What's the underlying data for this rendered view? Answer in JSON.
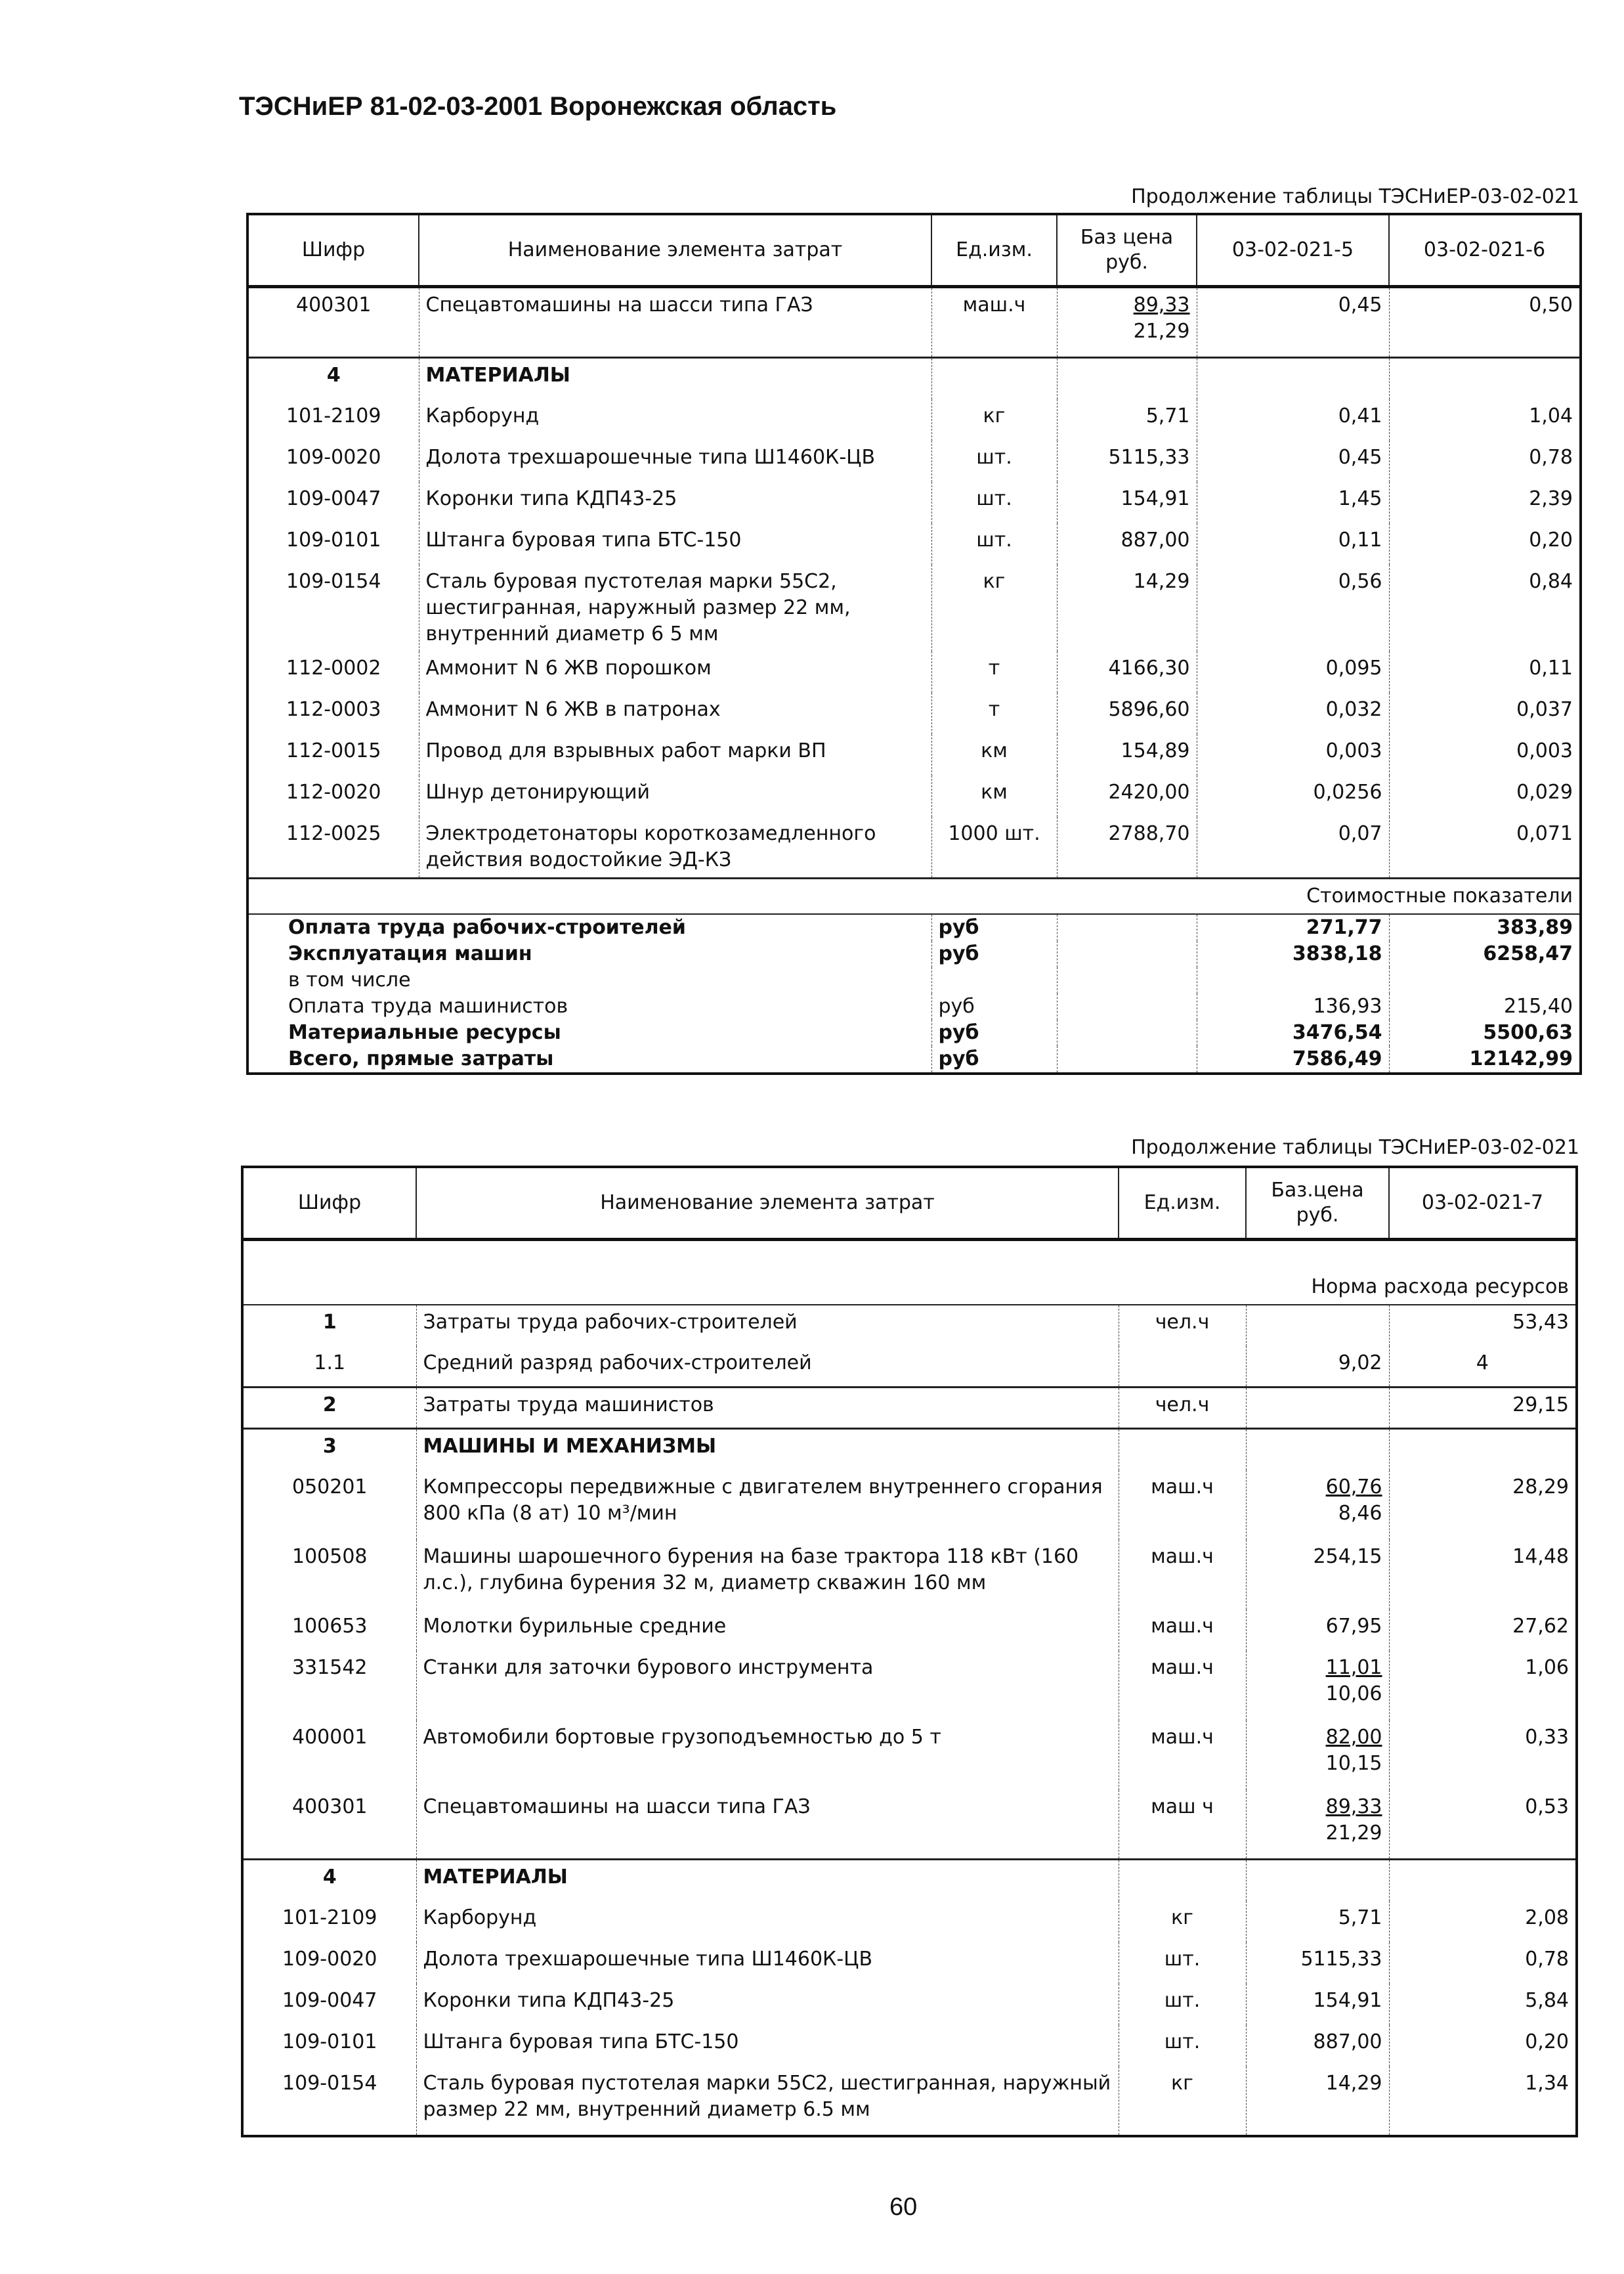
{
  "document_title": "ТЭСНиЕР 81-02-03-2001 Воронежская область",
  "page_number": "60",
  "table1": {
    "caption": "Продолжение таблицы ТЭСНиЕР-03-02-021",
    "headers": [
      "Шифр",
      "Наименование элемента затрат",
      "Ед.изм.",
      "Баз цена руб.",
      "03-02-021-5",
      "03-02-021-6"
    ],
    "rows": [
      {
        "code": "400301",
        "name": "Спецавтомашины на шасси типа ГАЗ",
        "unit": "маш.ч",
        "price": "89,33",
        "price2": "21,29",
        "v1": "0,45",
        "v2": "0,50"
      },
      {
        "type": "section",
        "code": "4",
        "name": "МАТЕРИАЛЫ"
      },
      {
        "code": "101-2109",
        "name": "Карборунд",
        "unit": "кг",
        "price": "5,71",
        "v1": "0,41",
        "v2": "1,04"
      },
      {
        "code": "109-0020",
        "name": "Долота трехшарошечные типа Ш1460К-ЦВ",
        "unit": "шт.",
        "price": "5115,33",
        "v1": "0,45",
        "v2": "0,78"
      },
      {
        "code": "109-0047",
        "name": "Коронки типа КДП43-25",
        "unit": "шт.",
        "price": "154,91",
        "v1": "1,45",
        "v2": "2,39"
      },
      {
        "code": "109-0101",
        "name": "Штанга буровая типа БТС-150",
        "unit": "шт.",
        "price": "887,00",
        "v1": "0,11",
        "v2": "0,20"
      },
      {
        "code": "109-0154",
        "name": "Сталь буровая пустотелая марки 55С2, шестигранная, наружный размер 22 мм, внутренний диаметр 6 5 мм",
        "unit": "кг",
        "price": "14,29",
        "v1": "0,56",
        "v2": "0,84"
      },
      {
        "code": "112-0002",
        "name": "Аммонит N 6 ЖВ порошком",
        "unit": "т",
        "price": "4166,30",
        "v1": "0,095",
        "v2": "0,11"
      },
      {
        "code": "112-0003",
        "name": "Аммонит N 6 ЖВ в патронах",
        "unit": "т",
        "price": "5896,60",
        "v1": "0,032",
        "v2": "0,037"
      },
      {
        "code": "112-0015",
        "name": "Провод для взрывных работ марки ВП",
        "unit": "км",
        "price": "154,89",
        "v1": "0,003",
        "v2": "0,003"
      },
      {
        "code": "112-0020",
        "name": "Шнур детонирующий",
        "unit": "км",
        "price": "2420,00",
        "v1": "0,0256",
        "v2": "0,029"
      },
      {
        "code": "112-0025",
        "name": "Электродетонаторы короткозамедленного действия водостойкие ЭД-КЗ",
        "unit": "1000 шт.",
        "price": "2788,70",
        "v1": "0,07",
        "v2": "0,071"
      }
    ],
    "cost_label": "Стоимостные показатели",
    "summary": [
      {
        "name": "Оплата труда рабочих-строителей",
        "unit": "руб",
        "v1": "271,77",
        "v2": "383,89",
        "bold": true
      },
      {
        "name": "Эксплуатация машин",
        "unit": "руб",
        "v1": "3838,18",
        "v2": "6258,47",
        "bold": true
      },
      {
        "name": "в том числе",
        "unit": "",
        "v1": "",
        "v2": "",
        "bold": false
      },
      {
        "name": "Оплата труда машинистов",
        "unit": "руб",
        "v1": "136,93",
        "v2": "215,40",
        "bold": false
      },
      {
        "name": "Материальные ресурсы",
        "unit": "руб",
        "v1": "3476,54",
        "v2": "5500,63",
        "bold": true
      },
      {
        "name": "Всего, прямые затраты",
        "unit": "руб",
        "v1": "7586,49",
        "v2": "12142,99",
        "bold": true
      }
    ]
  },
  "table2": {
    "caption": "Продолжение таблицы ТЭСНиЕР-03-02-021",
    "headers": [
      "Шифр",
      "Наименование элемента затрат",
      "Ед.изм.",
      "Баз.цена руб.",
      "03-02-021-7"
    ],
    "norm_label": "Норма расхода ресурсов",
    "rows": [
      {
        "type": "section",
        "code": "1",
        "name": "Затраты труда рабочих-строителей",
        "unit": "чел.ч",
        "price": "",
        "v1": "53,43",
        "plain": true
      },
      {
        "code": "1.1",
        "name": "Средний разряд рабочих-строителей",
        "unit": "",
        "price": "9,02",
        "v1": "4",
        "center": true
      },
      {
        "type": "section",
        "code": "2",
        "name": "Затраты труда машинистов",
        "unit": "чел.ч",
        "price": "",
        "v1": "29,15",
        "plain": true,
        "sep": true
      },
      {
        "type": "section",
        "code": "3",
        "name": "МАШИНЫ И МЕХАНИЗМЫ",
        "sep": true
      },
      {
        "code": "050201",
        "name": "Компрессоры передвижные с двигателем внутреннего сгорания 800 кПа (8 ат) 10 м³/мин",
        "unit": "маш.ч",
        "price": "60,76",
        "price2": "8,46",
        "v1": "28,29"
      },
      {
        "code": "100508",
        "name": "Машины шарошечного бурения на базе трактора 118 кВт (160 л.с.), глубина бурения 32 м, диаметр скважин 160 мм",
        "unit": "маш.ч",
        "price": "254,15",
        "v1": "14,48"
      },
      {
        "code": "100653",
        "name": "Молотки бурильные средние",
        "unit": "маш.ч",
        "price": "67,95",
        "v1": "27,62"
      },
      {
        "code": "331542",
        "name": "Станки для заточки бурового инструмента",
        "unit": "маш.ч",
        "price": "11,01",
        "price2": "10,06",
        "v1": "1,06"
      },
      {
        "code": "400001",
        "name": "Автомобили бортовые грузоподъемностью до 5 т",
        "unit": "маш.ч",
        "price": "82,00",
        "price2": "10,15",
        "v1": "0,33"
      },
      {
        "code": "400301",
        "name": "Спецавтомашины на шасси типа ГАЗ",
        "unit": "маш ч",
        "price": "89,33",
        "price2": "21,29",
        "v1": "0,53"
      },
      {
        "type": "section",
        "code": "4",
        "name": "МАТЕРИАЛЫ",
        "sep": true
      },
      {
        "code": "101-2109",
        "name": "Карборунд",
        "unit": "кг",
        "price": "5,71",
        "v1": "2,08"
      },
      {
        "code": "109-0020",
        "name": "Долота трехшарошечные типа Ш1460К-ЦВ",
        "unit": "шт.",
        "price": "5115,33",
        "v1": "0,78"
      },
      {
        "code": "109-0047",
        "name": "Коронки типа КДП43-25",
        "unit": "шт.",
        "price": "154,91",
        "v1": "5,84"
      },
      {
        "code": "109-0101",
        "name": "Штанга буровая типа БТС-150",
        "unit": "шт.",
        "price": "887,00",
        "v1": "0,20"
      },
      {
        "code": "109-0154",
        "name": "Сталь буровая пустотелая марки 55С2, шестигранная, наружный размер 22 мм, внутренний диаметр 6.5 мм",
        "unit": "кг",
        "price": "14,29",
        "v1": "1,34"
      }
    ]
  }
}
